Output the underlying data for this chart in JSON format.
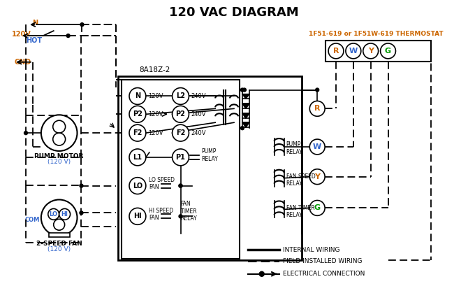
{
  "title": "120 VAC DIAGRAM",
  "bg_color": "#ffffff",
  "orange_color": "#cc6600",
  "blue_color": "#3366cc",
  "black_color": "#000000",
  "thermostat_label": "1F51-619 or 1F51W-619 THERMOSTAT",
  "module_label": "8A18Z-2",
  "terminals": [
    "R",
    "W",
    "Y",
    "G"
  ],
  "term_colors": [
    "#cc6600",
    "#3366cc",
    "#cc6600",
    "#009900"
  ],
  "left_circles": [
    "N",
    "P2",
    "F2"
  ],
  "right_circles": [
    "L2",
    "P2",
    "F2"
  ],
  "left_subs": [
    "120V",
    "120V",
    "120V"
  ],
  "right_subs": [
    "240V",
    "240V",
    "240V"
  ],
  "legend_items": [
    "INTERNAL WIRING",
    "FIELD INSTALLED WIRING",
    "ELECTRICAL CONNECTION"
  ]
}
